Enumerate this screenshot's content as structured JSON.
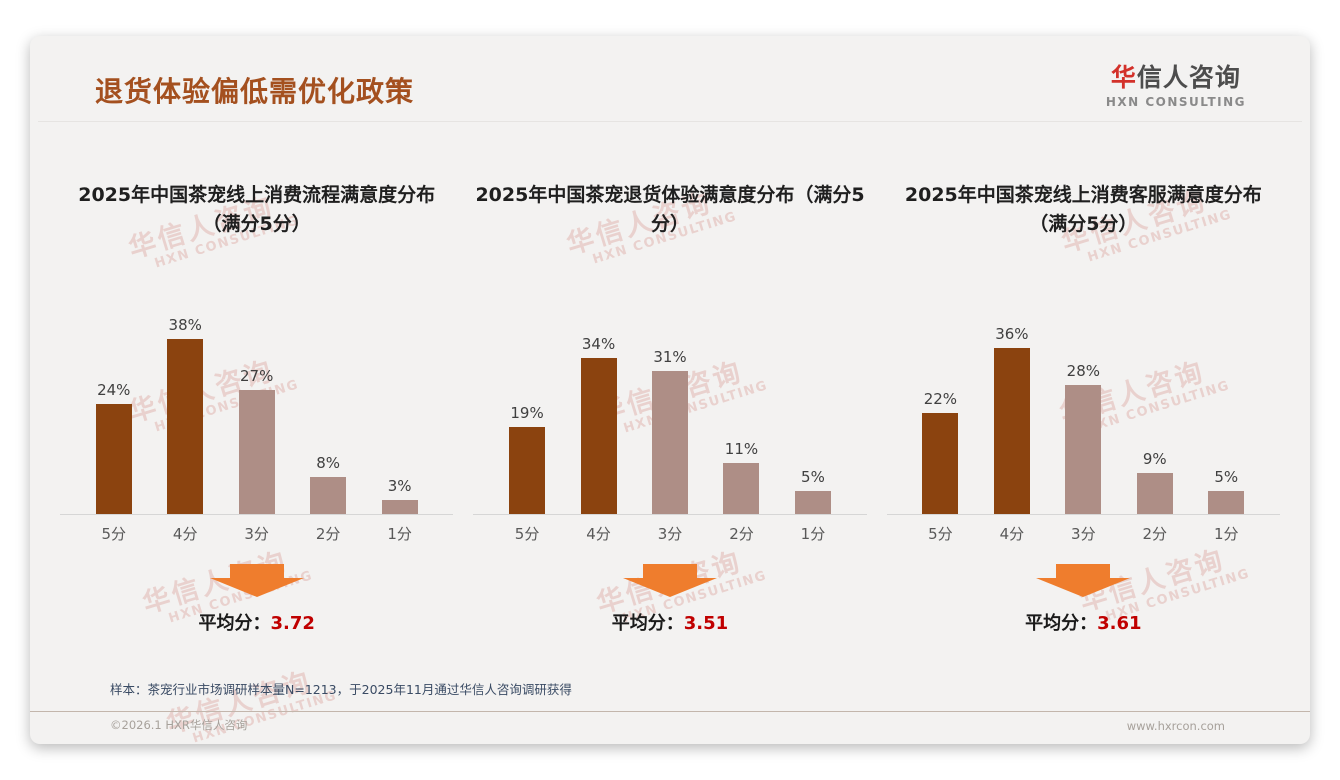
{
  "slide": {
    "title": "退货体验偏低需优化政策",
    "logo": {
      "name_red": "华",
      "name_rest": "信人咨询",
      "subtitle": "HXN CONSULTING"
    },
    "watermark": {
      "line1": "华信人咨询",
      "line2": "HXN CONSULTING"
    },
    "footnote": "样本：茶宠行业市场调研样本量N=1213，于2025年11月通过华信人咨询调研获得",
    "footer_left": "©2026.1 HXR华信人咨询",
    "footer_right": "www.hxrcon.com"
  },
  "colors": {
    "title_brown": "#A4501F",
    "bar_dark": "#8B430F",
    "bar_light": "#AE8E86",
    "arrow_orange": "#EF7D2D",
    "average_red": "#C00000",
    "logo_red": "#D3312A",
    "footnote_navy": "#3A4B64",
    "slide_background": "#F3F2F1"
  },
  "chart_data": [
    {
      "type": "bar",
      "title": "2025年中国茶宠线上消费流程满意度分布（满分5分）",
      "categories": [
        "5分",
        "4分",
        "3分",
        "2分",
        "1分"
      ],
      "values": [
        24,
        38,
        27,
        8,
        3
      ],
      "unit": "%",
      "bar_colors": [
        "#8B430F",
        "#8B430F",
        "#AE8E86",
        "#AE8E86",
        "#AE8E86"
      ],
      "ylim": [
        0,
        40
      ],
      "grid": false,
      "data_labels": true,
      "average_label": "平均分：",
      "average": "3.72"
    },
    {
      "type": "bar",
      "title": "2025年中国茶宠退货体验满意度分布（满分5分）",
      "categories": [
        "5分",
        "4分",
        "3分",
        "2分",
        "1分"
      ],
      "values": [
        19,
        34,
        31,
        11,
        5
      ],
      "unit": "%",
      "bar_colors": [
        "#8B430F",
        "#8B430F",
        "#AE8E86",
        "#AE8E86",
        "#AE8E86"
      ],
      "ylim": [
        0,
        40
      ],
      "grid": false,
      "data_labels": true,
      "average_label": "平均分：",
      "average": "3.51"
    },
    {
      "type": "bar",
      "title": "2025年中国茶宠线上消费客服满意度分布（满分5分）",
      "categories": [
        "5分",
        "4分",
        "3分",
        "2分",
        "1分"
      ],
      "values": [
        22,
        36,
        28,
        9,
        5
      ],
      "unit": "%",
      "bar_colors": [
        "#8B430F",
        "#8B430F",
        "#AE8E86",
        "#AE8E86",
        "#AE8E86"
      ],
      "ylim": [
        0,
        40
      ],
      "grid": false,
      "data_labels": true,
      "average_label": "平均分：",
      "average": "3.61"
    }
  ]
}
